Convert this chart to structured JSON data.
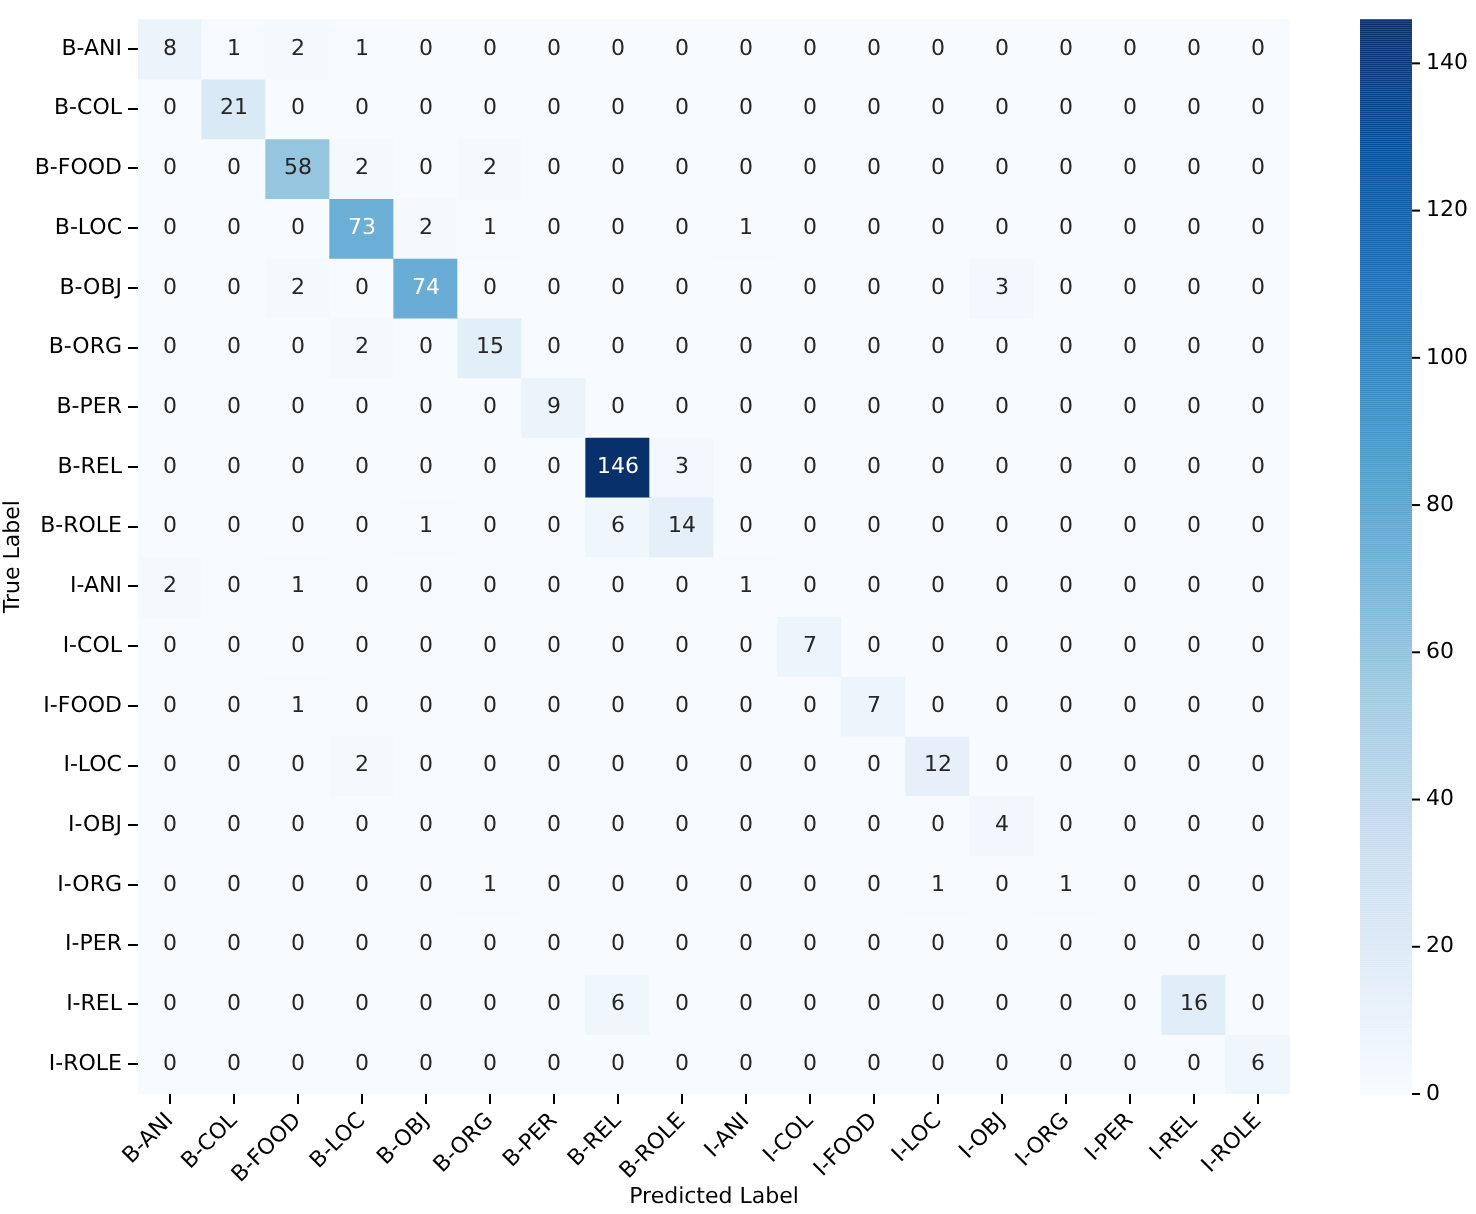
{
  "chart_data": {
    "type": "heatmap",
    "xlabel": "Predicted Label",
    "ylabel": "True Label",
    "categories": [
      "B-ANI",
      "B-COL",
      "B-FOOD",
      "B-LOC",
      "B-OBJ",
      "B-ORG",
      "B-PER",
      "B-REL",
      "B-ROLE",
      "I-ANI",
      "I-COL",
      "I-FOOD",
      "I-LOC",
      "I-OBJ",
      "I-ORG",
      "I-PER",
      "I-REL",
      "I-ROLE"
    ],
    "y_categories": [
      "B-ANI",
      "B-COL",
      "B-FOOD",
      "B-LOC",
      "B-OBJ",
      "B-ORG",
      "B-PER",
      "B-REL",
      "B-ROLE",
      "I-ANI",
      "I-COL",
      "I-FOOD",
      "I-LOC",
      "I-OBJ",
      "I-ORG",
      "I-PER",
      "I-REL",
      "I-ROLE"
    ],
    "cells": [
      [
        8,
        1,
        2,
        1,
        0,
        0,
        0,
        0,
        0,
        0,
        0,
        0,
        0,
        0,
        0,
        0,
        0,
        0
      ],
      [
        0,
        21,
        0,
        0,
        0,
        0,
        0,
        0,
        0,
        0,
        0,
        0,
        0,
        0,
        0,
        0,
        0,
        0
      ],
      [
        0,
        0,
        58,
        2,
        0,
        2,
        0,
        0,
        0,
        0,
        0,
        0,
        0,
        0,
        0,
        0,
        0,
        0
      ],
      [
        0,
        0,
        0,
        73,
        2,
        1,
        0,
        0,
        0,
        1,
        0,
        0,
        0,
        0,
        0,
        0,
        0,
        0
      ],
      [
        0,
        0,
        2,
        0,
        74,
        0,
        0,
        0,
        0,
        0,
        0,
        0,
        0,
        3,
        0,
        0,
        0,
        0
      ],
      [
        0,
        0,
        0,
        2,
        0,
        15,
        0,
        0,
        0,
        0,
        0,
        0,
        0,
        0,
        0,
        0,
        0,
        0
      ],
      [
        0,
        0,
        0,
        0,
        0,
        0,
        9,
        0,
        0,
        0,
        0,
        0,
        0,
        0,
        0,
        0,
        0,
        0
      ],
      [
        0,
        0,
        0,
        0,
        0,
        0,
        0,
        146,
        3,
        0,
        0,
        0,
        0,
        0,
        0,
        0,
        0,
        0
      ],
      [
        0,
        0,
        0,
        0,
        1,
        0,
        0,
        6,
        14,
        0,
        0,
        0,
        0,
        0,
        0,
        0,
        0,
        0
      ],
      [
        2,
        0,
        1,
        0,
        0,
        0,
        0,
        0,
        0,
        1,
        0,
        0,
        0,
        0,
        0,
        0,
        0,
        0
      ],
      [
        0,
        0,
        0,
        0,
        0,
        0,
        0,
        0,
        0,
        0,
        7,
        0,
        0,
        0,
        0,
        0,
        0,
        0
      ],
      [
        0,
        0,
        1,
        0,
        0,
        0,
        0,
        0,
        0,
        0,
        0,
        7,
        0,
        0,
        0,
        0,
        0,
        0
      ],
      [
        0,
        0,
        0,
        2,
        0,
        0,
        0,
        0,
        0,
        0,
        0,
        0,
        12,
        0,
        0,
        0,
        0,
        0
      ],
      [
        0,
        0,
        0,
        0,
        0,
        0,
        0,
        0,
        0,
        0,
        0,
        0,
        0,
        4,
        0,
        0,
        0,
        0
      ],
      [
        0,
        0,
        0,
        0,
        0,
        1,
        0,
        0,
        0,
        0,
        0,
        0,
        1,
        0,
        1,
        0,
        0,
        0
      ],
      [
        0,
        0,
        0,
        0,
        0,
        0,
        0,
        0,
        0,
        0,
        0,
        0,
        0,
        0,
        0,
        0,
        0,
        0
      ],
      [
        0,
        0,
        0,
        0,
        0,
        0,
        0,
        6,
        0,
        0,
        0,
        0,
        0,
        0,
        0,
        0,
        16,
        0
      ],
      [
        0,
        0,
        0,
        0,
        0,
        0,
        0,
        0,
        0,
        0,
        0,
        0,
        0,
        0,
        0,
        0,
        0,
        6
      ]
    ],
    "clim": [
      0,
      146
    ],
    "cticks": [
      0,
      20,
      40,
      60,
      80,
      100,
      120,
      140
    ],
    "data_labels": true
  }
}
